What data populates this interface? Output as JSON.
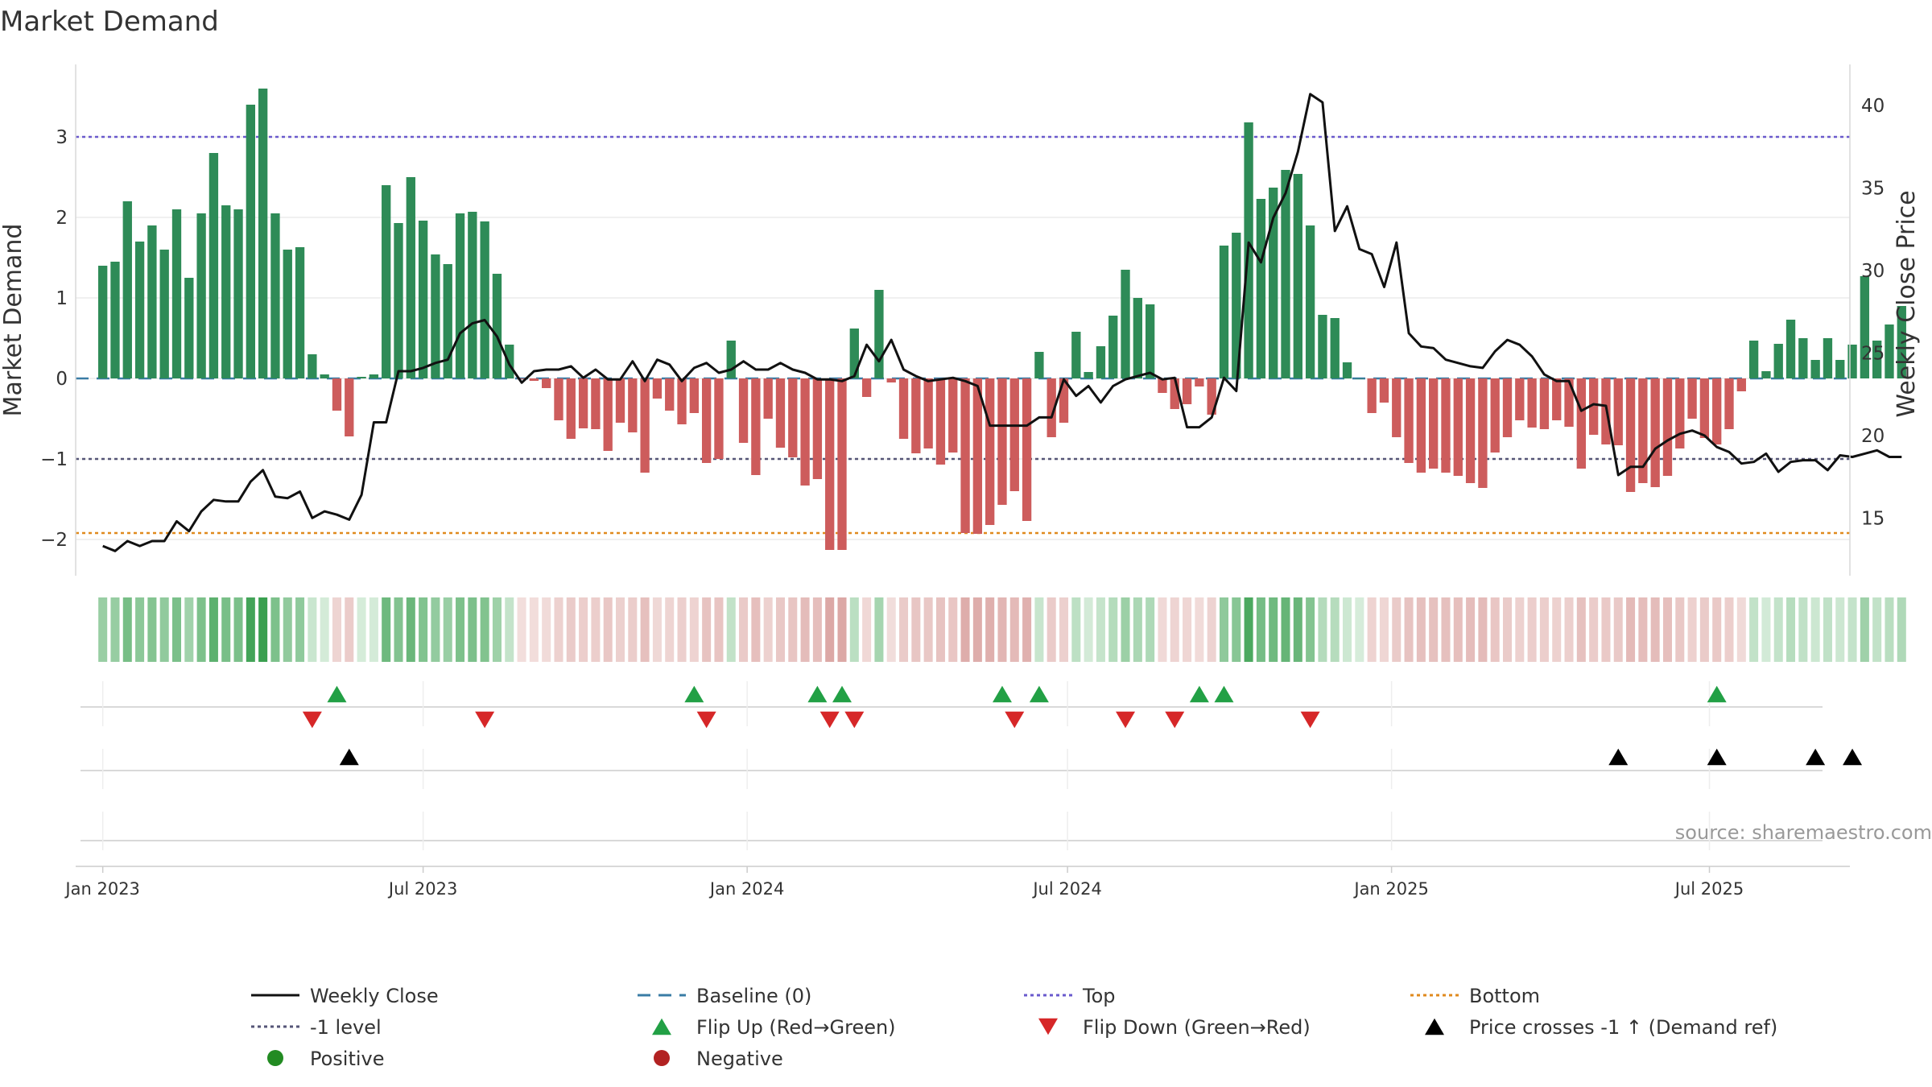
{
  "chart_data": {
    "type": "bar",
    "title": "Market Demand",
    "ylabel": "Market Demand",
    "y2label": "Weekly Close Price",
    "ylim": [
      -2.45,
      3.9
    ],
    "y2lim": [
      11.5,
      42.5
    ],
    "yticks": [
      "3",
      "2",
      "1",
      "0",
      "−1",
      "−2"
    ],
    "y2ticks": [
      "40",
      "35",
      "30",
      "25",
      "20",
      "15"
    ],
    "xlim_weeks": [
      -2.2,
      141.8
    ],
    "xticks": [
      {
        "label": "Jan 2023",
        "week": 0
      },
      {
        "label": "Jul 2023",
        "week": 26
      },
      {
        "label": "Jan 2024",
        "week": 52.3
      },
      {
        "label": "Jul 2024",
        "week": 78.3
      },
      {
        "label": "Jan 2025",
        "week": 104.6
      },
      {
        "label": "Jul 2025",
        "week": 130.4
      }
    ],
    "levels": {
      "top": 3.0,
      "minus_one": -1.0,
      "bottom": -1.92,
      "baseline": 0
    },
    "series": [
      {
        "name": "Market Demand",
        "values": [
          1.4,
          1.45,
          2.2,
          1.7,
          1.9,
          1.6,
          2.1,
          1.25,
          2.05,
          2.8,
          2.15,
          2.1,
          3.4,
          3.6,
          2.05,
          1.6,
          1.63,
          0.3,
          0.05,
          -0.4,
          -0.72,
          0.02,
          0.05,
          2.4,
          1.93,
          2.5,
          1.96,
          1.54,
          1.42,
          2.05,
          2.07,
          1.95,
          1.3,
          0.42,
          -0.01,
          -0.03,
          -0.12,
          -0.52,
          -0.75,
          -0.62,
          -0.63,
          -0.9,
          -0.55,
          -0.67,
          -1.17,
          -0.25,
          -0.4,
          -0.57,
          -0.43,
          -1.05,
          -1.0,
          0.47,
          -0.8,
          -1.2,
          -0.5,
          -0.86,
          -0.98,
          -1.33,
          -1.25,
          -2.13,
          -2.13,
          0.62,
          -0.23,
          1.1,
          -0.05,
          -0.75,
          -0.93,
          -0.87,
          -1.07,
          -0.92,
          -1.92,
          -1.93,
          -1.82,
          -1.57,
          -1.4,
          -1.77,
          0.33,
          -0.73,
          -0.55,
          0.58,
          0.08,
          0.4,
          0.78,
          1.35,
          1.0,
          0.92,
          -0.18,
          -0.38,
          -0.32,
          -0.1,
          -0.45,
          1.65,
          1.81,
          3.18,
          2.23,
          2.37,
          2.59,
          2.54,
          1.9,
          0.79,
          0.75,
          0.2,
          0.0,
          -0.43,
          -0.3,
          -0.73,
          -1.05,
          -1.17,
          -1.12,
          -1.17,
          -1.21,
          -1.3,
          -1.36,
          -0.92,
          -0.73,
          -0.52,
          -0.61,
          -0.63,
          -0.52,
          -0.6,
          -1.12,
          -0.7,
          -0.82,
          -0.83,
          -1.41,
          -1.3,
          -1.35,
          -1.21,
          -0.87,
          -0.5,
          -0.74,
          -0.82,
          -0.63,
          -0.16,
          0.47,
          0.09,
          0.43,
          0.73,
          0.5,
          0.23,
          0.5,
          0.23,
          0.42,
          1.27,
          0.47,
          0.67,
          0.9
        ]
      },
      {
        "name": "Weekly Close",
        "values": [
          13.3,
          13.0,
          13.6,
          13.3,
          13.6,
          13.6,
          14.8,
          14.2,
          15.4,
          16.1,
          16.0,
          16.0,
          17.2,
          17.9,
          16.3,
          16.2,
          16.6,
          15.0,
          15.4,
          15.2,
          14.9,
          16.4,
          20.8,
          20.8,
          23.9,
          23.9,
          24.1,
          24.4,
          24.6,
          26.2,
          26.8,
          27.0,
          26.0,
          24.3,
          23.2,
          23.9,
          24.0,
          24.0,
          24.2,
          23.5,
          24.0,
          23.4,
          23.4,
          24.5,
          23.3,
          24.6,
          24.3,
          23.3,
          24.1,
          24.4,
          23.8,
          24.0,
          24.5,
          24.0,
          24.0,
          24.4,
          24.0,
          23.8,
          23.4,
          23.4,
          23.3,
          23.6,
          25.5,
          24.5,
          25.8,
          24.0,
          23.6,
          23.3,
          23.4,
          23.5,
          23.3,
          23.0,
          20.6,
          20.6,
          20.6,
          20.6,
          21.1,
          21.1,
          23.4,
          22.4,
          23.0,
          22.0,
          23.0,
          23.4,
          23.6,
          23.8,
          23.4,
          23.5,
          20.5,
          20.5,
          21.1,
          23.5,
          22.7,
          31.7,
          30.5,
          33.2,
          34.7,
          37.2,
          40.7,
          40.2,
          32.4,
          33.9,
          31.3,
          31.0,
          29.0,
          31.7,
          26.2,
          25.4,
          25.3,
          24.6,
          24.4,
          24.2,
          24.1,
          25.1,
          25.8,
          25.5,
          24.8,
          23.7,
          23.3,
          23.3,
          21.5,
          21.9,
          21.8,
          17.6,
          18.1,
          18.1,
          19.2,
          19.7,
          20.1,
          20.3,
          20.0,
          19.3,
          19.0,
          18.3,
          18.4,
          18.9,
          17.8,
          18.4,
          18.5,
          18.5,
          17.9,
          18.8,
          18.7,
          18.9,
          19.1,
          18.7,
          18.7
        ]
      }
    ],
    "flip_up_weeks": [
      19,
      48,
      58,
      60,
      73,
      76,
      89,
      91,
      131
    ],
    "flip_down_weeks": [
      17,
      31,
      49,
      59,
      61,
      74,
      83,
      87,
      98
    ],
    "price_cross_weeks": [
      20,
      123,
      131,
      139,
      142
    ],
    "legend": [
      {
        "label": "Weekly Close",
        "key": "line-black"
      },
      {
        "label": "Baseline (0)",
        "key": "dash-blue"
      },
      {
        "label": "Top",
        "key": "dot-purple"
      },
      {
        "label": "Bottom",
        "key": "dot-orange"
      },
      {
        "label": "-1 level",
        "key": "dot-gray"
      },
      {
        "label": "Flip Up (Red→Green)",
        "key": "tri-up-green"
      },
      {
        "label": "Flip Down (Green→Red)",
        "key": "tri-down-red"
      },
      {
        "label": "Price crosses -1 ↑ (Demand ref)",
        "key": "tri-up-black"
      },
      {
        "label": "Positive",
        "key": "circle-green"
      },
      {
        "label": "Negative",
        "key": "circle-red"
      }
    ],
    "source": "source: sharemaestro.com",
    "colors": {
      "positive": "#2e8b57",
      "negative": "#cd5c5c",
      "price": "#111111",
      "baseline": "#3a7ca5",
      "top": "#6a5acd",
      "bottom": "#e08a1e",
      "minus_one": "#555577",
      "flip_up": "#22a045",
      "flip_down": "#d62728",
      "cross": "#000000",
      "legend_positive": "#228b22",
      "legend_negative": "#b22222"
    }
  }
}
